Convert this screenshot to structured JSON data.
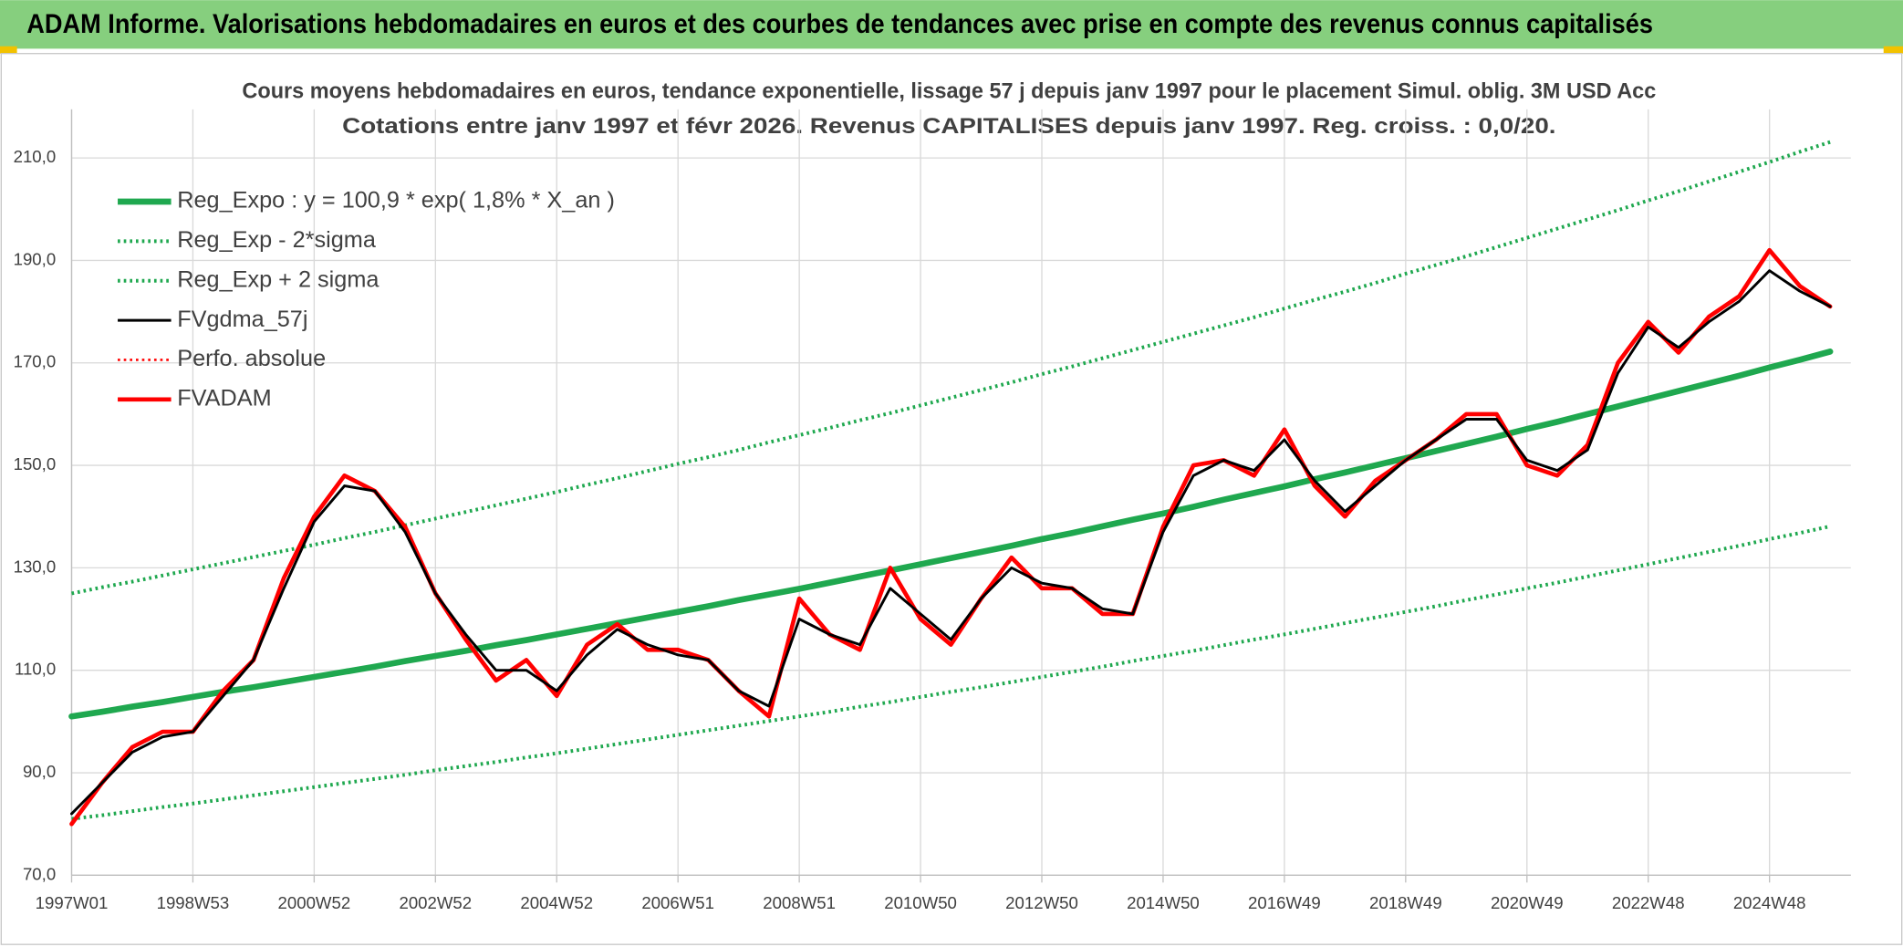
{
  "header": {
    "title": "ADAM Informe. Valorisations hebdomadaires en euros et des courbes de tendances avec prise en compte des revenus connus capitalisés"
  },
  "chart_data": {
    "type": "line",
    "title": "Cours moyens hebdomadaires en euros, tendance exponentielle, lissage 57 j depuis janv 1997 pour le placement Simul. oblig. 3M USD Acc",
    "subtitle": "Cotations entre janv 1997 et févr 2026. Revenus CAPITALISES depuis janv 1997. Reg. croiss. : 0,0/20.",
    "categories": [
      "1997W01",
      null,
      null,
      null,
      "1998W53",
      null,
      null,
      null,
      "2000W52",
      null,
      null,
      null,
      "2002W52",
      null,
      null,
      null,
      "2004W52",
      null,
      null,
      null,
      "2006W51",
      null,
      null,
      null,
      "2008W51",
      null,
      null,
      null,
      "2010W50",
      null,
      null,
      null,
      "2012W50",
      null,
      null,
      null,
      "2014W50",
      null,
      null,
      null,
      "2016W49",
      null,
      null,
      null,
      "2018W49",
      null,
      null,
      null,
      "2020W49",
      null,
      null,
      null,
      "2022W48",
      null,
      null,
      null,
      "2024W48",
      null,
      null
    ],
    "ylim": [
      70,
      210
    ],
    "yticks": [
      {
        "value": 70,
        "label": "70,0"
      },
      {
        "value": 90,
        "label": "90,0"
      },
      {
        "value": 110,
        "label": "110,0"
      },
      {
        "value": 130,
        "label": "130,0"
      },
      {
        "value": 150,
        "label": "150,0"
      },
      {
        "value": 170,
        "label": "170,0"
      },
      {
        "value": 190,
        "label": "190,0"
      },
      {
        "value": 210,
        "label": "210,0"
      }
    ],
    "grid": true,
    "legend": "top-left",
    "series": [
      {
        "name": "Reg_Expo : y = 100,9 * exp( 1,8% *  X_an )",
        "color": "#1fa84f",
        "dotted": false,
        "values": [
          101.0,
          101.9,
          102.9,
          103.8,
          104.8,
          105.8,
          106.7,
          107.7,
          108.7,
          109.7,
          110.7,
          111.8,
          112.8,
          113.8,
          114.9,
          115.9,
          117.0,
          118.1,
          119.2,
          120.3,
          121.4,
          122.5,
          123.7,
          124.8,
          125.9,
          127.1,
          128.3,
          129.5,
          130.7,
          131.9,
          133.1,
          134.3,
          135.6,
          136.8,
          138.1,
          139.4,
          140.6,
          141.9,
          143.3,
          144.6,
          145.9,
          147.3,
          148.6,
          150.0,
          151.4,
          152.8,
          154.2,
          155.6,
          157.1,
          158.5,
          160.0,
          161.5,
          163.0,
          164.5,
          166.0,
          167.5,
          169.1,
          170.6,
          172.2
        ]
      },
      {
        "name": "Reg_Exp - 2*sigma",
        "color": "#1fa84f",
        "dotted": true,
        "values": [
          81.0,
          81.7,
          82.5,
          83.3,
          84.0,
          84.8,
          85.6,
          86.4,
          87.2,
          88.0,
          88.8,
          89.6,
          90.5,
          91.3,
          92.1,
          93.0,
          93.8,
          94.7,
          95.6,
          96.5,
          97.4,
          98.3,
          99.2,
          100.1,
          101.0,
          101.9,
          102.9,
          103.8,
          104.8,
          105.8,
          106.7,
          107.7,
          108.7,
          109.7,
          110.7,
          111.8,
          112.8,
          113.8,
          114.9,
          116.0,
          117.0,
          118.1,
          119.2,
          120.3,
          121.4,
          122.5,
          123.7,
          124.8,
          126.0,
          127.1,
          128.3,
          129.5,
          130.7,
          131.9,
          133.1,
          134.3,
          135.6,
          136.8,
          138.1
        ]
      },
      {
        "name": "Reg_Exp + 2 sigma",
        "color": "#1fa84f",
        "dotted": true,
        "values": [
          125.0,
          126.2,
          127.3,
          128.5,
          129.7,
          130.9,
          132.1,
          133.3,
          134.5,
          135.8,
          137.0,
          138.3,
          139.6,
          140.9,
          142.2,
          143.5,
          144.8,
          146.2,
          147.5,
          148.9,
          150.3,
          151.6,
          153.0,
          154.5,
          155.9,
          157.3,
          158.8,
          160.2,
          161.7,
          163.2,
          164.7,
          166.2,
          167.8,
          169.3,
          170.9,
          172.5,
          174.1,
          175.7,
          177.3,
          178.9,
          180.6,
          182.3,
          183.9,
          185.6,
          187.4,
          189.1,
          190.8,
          192.6,
          194.4,
          196.2,
          198.0,
          199.8,
          201.7,
          203.5,
          205.4,
          207.3,
          209.2,
          211.2,
          213.1
        ]
      },
      {
        "name": "FVgdma_57j",
        "color": "#000000",
        "dotted": false,
        "values": [
          82,
          88,
          94,
          97,
          98,
          105,
          112,
          126,
          139,
          146,
          145,
          137,
          125,
          117,
          110,
          110,
          106,
          113,
          118,
          115,
          113,
          112,
          106,
          103,
          120,
          117,
          115,
          126,
          121,
          116,
          124,
          130,
          127,
          126,
          122,
          121,
          137,
          148,
          151,
          149,
          155,
          147,
          141,
          146,
          151,
          155,
          159,
          159,
          151,
          149,
          153,
          168,
          177,
          173,
          178,
          182,
          188,
          184,
          181
        ]
      },
      {
        "name": "Perfo. absolue",
        "color": "#ff0000",
        "dotted": true,
        "values": [
          80,
          88,
          95,
          98,
          98,
          106,
          112,
          128,
          140,
          148,
          145,
          138,
          125,
          116,
          108,
          112,
          105,
          115,
          119,
          114,
          114,
          112,
          106,
          101,
          124,
          117,
          114,
          130,
          120,
          115,
          124,
          132,
          126,
          126,
          121,
          121,
          138,
          150,
          151,
          148,
          157,
          146,
          140,
          147,
          151,
          155,
          160,
          160,
          150,
          148,
          154,
          170,
          178,
          172,
          179,
          183,
          192,
          185,
          181
        ]
      },
      {
        "name": "FVADAM",
        "color": "#ff0000",
        "dotted": false,
        "values": [
          80,
          88,
          95,
          98,
          98,
          106,
          112,
          128,
          140,
          148,
          145,
          138,
          125,
          116,
          108,
          112,
          105,
          115,
          119,
          114,
          114,
          112,
          106,
          101,
          124,
          117,
          114,
          130,
          120,
          115,
          124,
          132,
          126,
          126,
          121,
          121,
          138,
          150,
          151,
          148,
          157,
          146,
          140,
          147,
          151,
          155,
          160,
          160,
          150,
          148,
          154,
          170,
          178,
          172,
          179,
          183,
          192,
          185,
          181
        ]
      }
    ]
  }
}
